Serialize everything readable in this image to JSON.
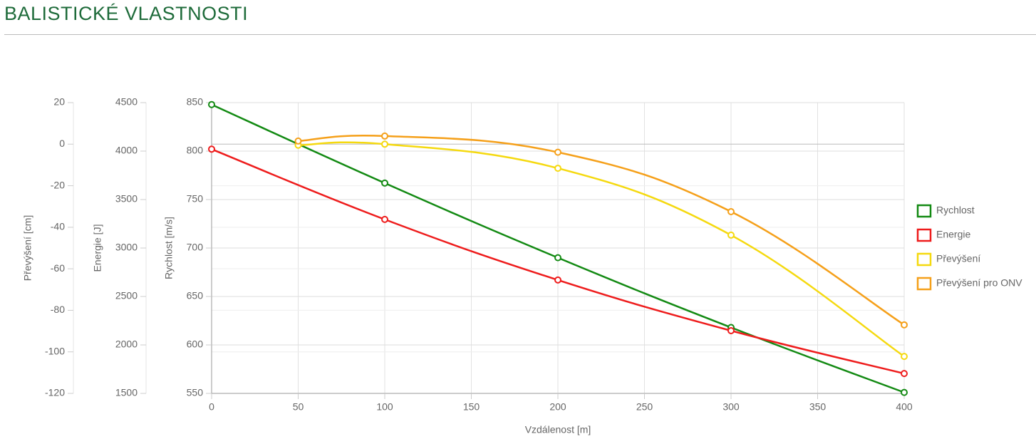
{
  "chart_data": {
    "type": "line",
    "title": "BALISTICKÉ VLASTNOSTI",
    "xlabel": "Vzdálenost [m]",
    "xlim": [
      0,
      400
    ],
    "xticks": [
      0,
      50,
      100,
      150,
      200,
      250,
      300,
      350,
      400
    ],
    "ylabel": "Rychlost [m/s]",
    "ylim": [
      550,
      850
    ],
    "yticks": [
      550,
      600,
      650,
      700,
      750,
      800,
      850
    ],
    "y2label": "Energie [J]",
    "y2lim": [
      1500,
      4500
    ],
    "y2ticks": [
      1500,
      2000,
      2500,
      3000,
      3500,
      4000,
      4500
    ],
    "y3label": "Převýšení [cm]",
    "y3lim": [
      -120,
      20
    ],
    "y3ticks": [
      -120,
      -100,
      -80,
      -60,
      -40,
      -20,
      0,
      20
    ],
    "grid": true,
    "legend": "right",
    "series": [
      {
        "name": "Rychlost",
        "color": "#138a13",
        "axis": "y",
        "x": [
          0,
          100,
          200,
          300,
          400
        ],
        "values": [
          848,
          767,
          690,
          618,
          551
        ]
      },
      {
        "name": "Energie",
        "color": "#ee1c1c",
        "axis": "y2",
        "x": [
          0,
          100,
          200,
          300,
          400
        ],
        "values": [
          4020,
          3295,
          2670,
          2147,
          1705
        ]
      },
      {
        "name": "Převýšení",
        "color": "#f5d90f",
        "axis": "y3",
        "x": [
          50,
          100,
          200,
          300,
          400
        ],
        "values": [
          -0.5,
          0,
          -11.6,
          -43.8,
          -102.2
        ]
      },
      {
        "name": "Převýšení pro ONV",
        "color": "#f5a01a",
        "axis": "y3",
        "x": [
          50,
          100,
          200,
          300,
          400
        ],
        "values": [
          1.5,
          3.9,
          -3.9,
          -32.5,
          -87
        ]
      }
    ]
  }
}
